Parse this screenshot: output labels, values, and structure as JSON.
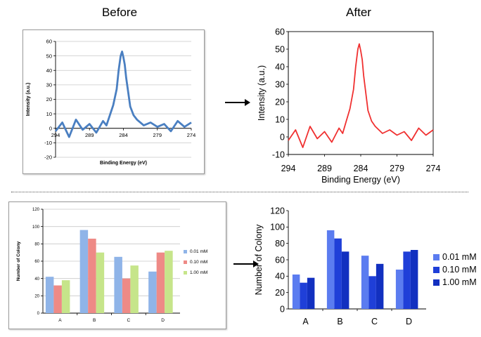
{
  "headings": {
    "before": "Before",
    "after": "After"
  },
  "chart_data": [
    {
      "id": "xps_before",
      "type": "line",
      "title": "",
      "xlabel": "Binding Energy (eV)",
      "ylabel": "Intensity (a.u.)",
      "xlim": [
        294,
        274
      ],
      "x_reversed": true,
      "ylim": [
        -20,
        60
      ],
      "xticks": [
        294,
        289,
        284,
        279,
        274
      ],
      "yticks": [
        -20,
        -10,
        0,
        10,
        20,
        30,
        40,
        50,
        60
      ],
      "grid": true,
      "color": "#4a7fc1",
      "series": [
        {
          "x": [
            294,
            293,
            292,
            291,
            290,
            289,
            288,
            287,
            286.5,
            286,
            285.5,
            285,
            284.7,
            284.4,
            284.2,
            284,
            283.8,
            283.6,
            283.3,
            283,
            282.5,
            282,
            281,
            280,
            279,
            278,
            277,
            276,
            275,
            274
          ],
          "y": [
            -2,
            4,
            -6,
            6,
            -1,
            3,
            -3,
            5,
            2,
            9,
            16,
            27,
            40,
            50,
            53,
            49,
            44,
            35,
            25,
            15,
            9,
            6,
            2,
            4,
            1,
            3,
            -2,
            5,
            1,
            4
          ]
        }
      ]
    },
    {
      "id": "xps_after",
      "type": "line",
      "title": "",
      "xlabel": "Binding Energy (eV)",
      "ylabel": "Intensity (a.u.)",
      "xlim": [
        294,
        274
      ],
      "x_reversed": true,
      "ylim": [
        -10,
        60
      ],
      "xticks": [
        294,
        289,
        284,
        279,
        274
      ],
      "yticks": [
        -10,
        0,
        10,
        20,
        30,
        40,
        50,
        60
      ],
      "grid": false,
      "color": "#f03030",
      "series": [
        {
          "x": [
            294,
            293,
            292,
            291,
            290,
            289,
            288,
            287,
            286.5,
            286,
            285.5,
            285,
            284.7,
            284.4,
            284.2,
            284,
            283.8,
            283.6,
            283.3,
            283,
            282.5,
            282,
            281,
            280,
            279,
            278,
            277,
            276,
            275,
            274
          ],
          "y": [
            -2,
            4,
            -6,
            6,
            -1,
            3,
            -3,
            5,
            2,
            9,
            16,
            27,
            40,
            50,
            53,
            49,
            44,
            35,
            25,
            15,
            9,
            6,
            2,
            4,
            1,
            3,
            -2,
            5,
            1,
            4
          ]
        }
      ]
    },
    {
      "id": "colony_before",
      "type": "bar",
      "title": "",
      "xlabel": "",
      "ylabel": "Number of Colony",
      "categories": [
        "A",
        "B",
        "C",
        "D"
      ],
      "ylim": [
        0,
        120
      ],
      "yticks": [
        0,
        20,
        40,
        60,
        80,
        100,
        120
      ],
      "grid": true,
      "legend": "right",
      "series": [
        {
          "name": "0.01 mM",
          "values": [
            42,
            96,
            65,
            48
          ],
          "color": "#8fb4e8"
        },
        {
          "name": "0.10 mM",
          "values": [
            32,
            86,
            40,
            70
          ],
          "color": "#ee8a86"
        },
        {
          "name": "1.00 mM",
          "values": [
            38,
            70,
            55,
            72
          ],
          "color": "#c6e58a"
        }
      ]
    },
    {
      "id": "colony_after",
      "type": "bar",
      "title": "",
      "xlabel": "",
      "ylabel": "Number of Colony",
      "categories": [
        "A",
        "B",
        "C",
        "D"
      ],
      "ylim": [
        0,
        120
      ],
      "yticks": [
        0,
        20,
        40,
        60,
        80,
        100,
        120
      ],
      "grid": false,
      "legend": "right",
      "series": [
        {
          "name": "0.01 mM",
          "values": [
            42,
            96,
            65,
            48
          ],
          "color": "#5b7cf0"
        },
        {
          "name": "0.10 mM",
          "values": [
            32,
            86,
            40,
            70
          ],
          "color": "#1f3fd8"
        },
        {
          "name": "1.00 mM",
          "values": [
            38,
            70,
            55,
            72
          ],
          "color": "#1230c0"
        }
      ]
    }
  ]
}
